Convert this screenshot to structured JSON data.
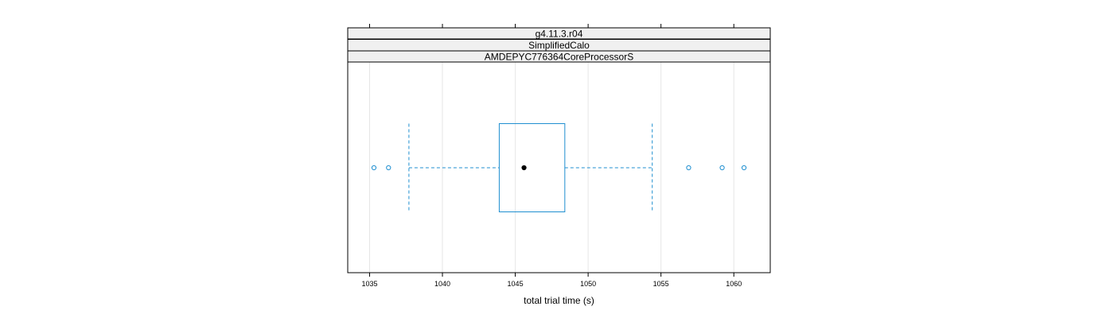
{
  "chart_data": {
    "type": "boxplot",
    "orientation": "horizontal",
    "strips": [
      "g4.11.3.r04",
      "SimplifiedCalo",
      "AMDEPYC776364CoreProcessorS"
    ],
    "xlabel": "total trial time (s)",
    "xlim": [
      1033.5,
      1062.5
    ],
    "x_ticks": [
      1035,
      1040,
      1045,
      1050,
      1055,
      1060
    ],
    "grid": true,
    "box": {
      "whisker_low": 1037.7,
      "q1": 1043.9,
      "median": 1045.6,
      "q3": 1048.4,
      "whisker_high": 1054.4
    },
    "outliers": [
      1035.3,
      1036.3,
      1056.9,
      1059.2,
      1060.7
    ],
    "colors": {
      "box": "#1f8fd0",
      "whisker": "#1f8fd0",
      "outlier": "#1f8fd0",
      "median_dot": "#000000",
      "grid": "#e6e6e6",
      "strip_bg": "#f0f0f0"
    }
  }
}
